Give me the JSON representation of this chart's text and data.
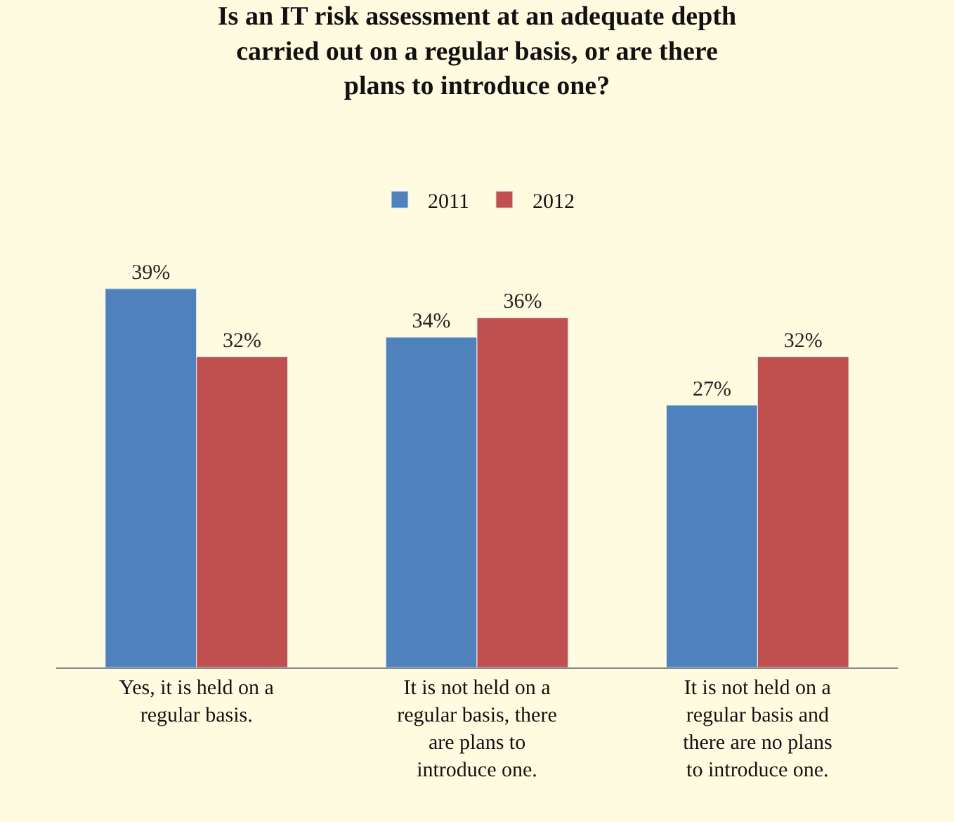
{
  "chart_data": {
    "type": "bar",
    "title": "Is an IT risk assessment at an adequate depth carried out on a regular basis, or are there plans to introduce one?",
    "categories": [
      "Yes, it is held on a regular basis.",
      "It is not held on a regular basis, there are plans to introduce one.",
      "It is not held on a regular basis and there are no plans to introduce one."
    ],
    "series": [
      {
        "name": "2011",
        "color": "#4f81bd",
        "values": [
          39,
          34,
          27
        ],
        "value_labels": [
          "39%",
          "34%",
          "27%"
        ]
      },
      {
        "name": "2012",
        "color": "#c0504d",
        "values": [
          32,
          36,
          32
        ],
        "value_labels": [
          "32%",
          "36%",
          "32%"
        ]
      }
    ],
    "legend": "top",
    "grid": false
  }
}
